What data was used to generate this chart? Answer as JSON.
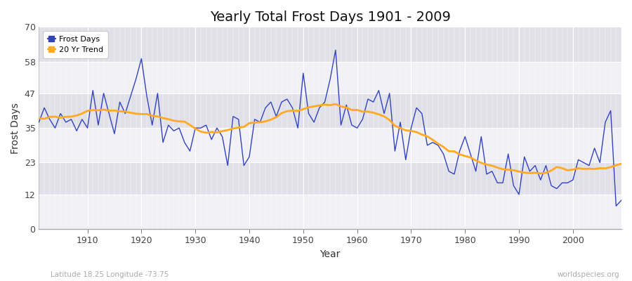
{
  "title": "Yearly Total Frost Days 1901 - 2009",
  "xlabel": "Year",
  "ylabel": "Frost Days",
  "subtitle_left": "Latitude 18.25 Longitude -73.75",
  "subtitle_right": "worldspecies.org",
  "line_color": "#3344bb",
  "trend_color": "#ffaa22",
  "bg_color": "#ffffff",
  "plot_bg_color": "#e8e8ee",
  "band_color_light": "#f0f0f5",
  "band_color_dark": "#e0e0e8",
  "ylim": [
    0,
    70
  ],
  "yticks": [
    0,
    12,
    23,
    35,
    47,
    58,
    70
  ],
  "xlim": [
    1901,
    2009
  ],
  "years": [
    1901,
    1902,
    1903,
    1904,
    1905,
    1906,
    1907,
    1908,
    1909,
    1910,
    1911,
    1912,
    1913,
    1914,
    1915,
    1916,
    1917,
    1918,
    1919,
    1920,
    1921,
    1922,
    1923,
    1924,
    1925,
    1926,
    1927,
    1928,
    1929,
    1930,
    1931,
    1932,
    1933,
    1934,
    1935,
    1936,
    1937,
    1938,
    1939,
    1940,
    1941,
    1942,
    1943,
    1944,
    1945,
    1946,
    1947,
    1948,
    1949,
    1950,
    1951,
    1952,
    1953,
    1954,
    1955,
    1956,
    1957,
    1958,
    1959,
    1960,
    1961,
    1962,
    1963,
    1964,
    1965,
    1966,
    1967,
    1968,
    1969,
    1970,
    1971,
    1972,
    1973,
    1974,
    1975,
    1976,
    1977,
    1978,
    1979,
    1980,
    1981,
    1982,
    1983,
    1984,
    1985,
    1986,
    1987,
    1988,
    1989,
    1990,
    1991,
    1992,
    1993,
    1994,
    1995,
    1996,
    1997,
    1998,
    1999,
    2000,
    2001,
    2002,
    2003,
    2004,
    2005,
    2006,
    2007,
    2008,
    2009
  ],
  "frost_days": [
    37,
    42,
    38,
    35,
    40,
    37,
    38,
    34,
    38,
    35,
    48,
    36,
    47,
    40,
    33,
    44,
    40,
    46,
    52,
    59,
    46,
    36,
    47,
    30,
    36,
    34,
    35,
    30,
    27,
    35,
    35,
    36,
    31,
    35,
    32,
    22,
    39,
    38,
    22,
    25,
    38,
    37,
    42,
    44,
    39,
    44,
    45,
    42,
    35,
    54,
    40,
    37,
    42,
    44,
    52,
    62,
    36,
    43,
    36,
    35,
    38,
    45,
    44,
    48,
    40,
    47,
    27,
    37,
    24,
    35,
    42,
    40,
    29,
    30,
    29,
    26,
    20,
    19,
    27,
    32,
    26,
    20,
    32,
    19,
    20,
    16,
    16,
    26,
    15,
    12,
    25,
    20,
    22,
    17,
    22,
    15,
    14,
    16,
    16,
    17,
    24,
    23,
    22,
    28,
    23,
    37,
    41,
    8,
    10
  ]
}
